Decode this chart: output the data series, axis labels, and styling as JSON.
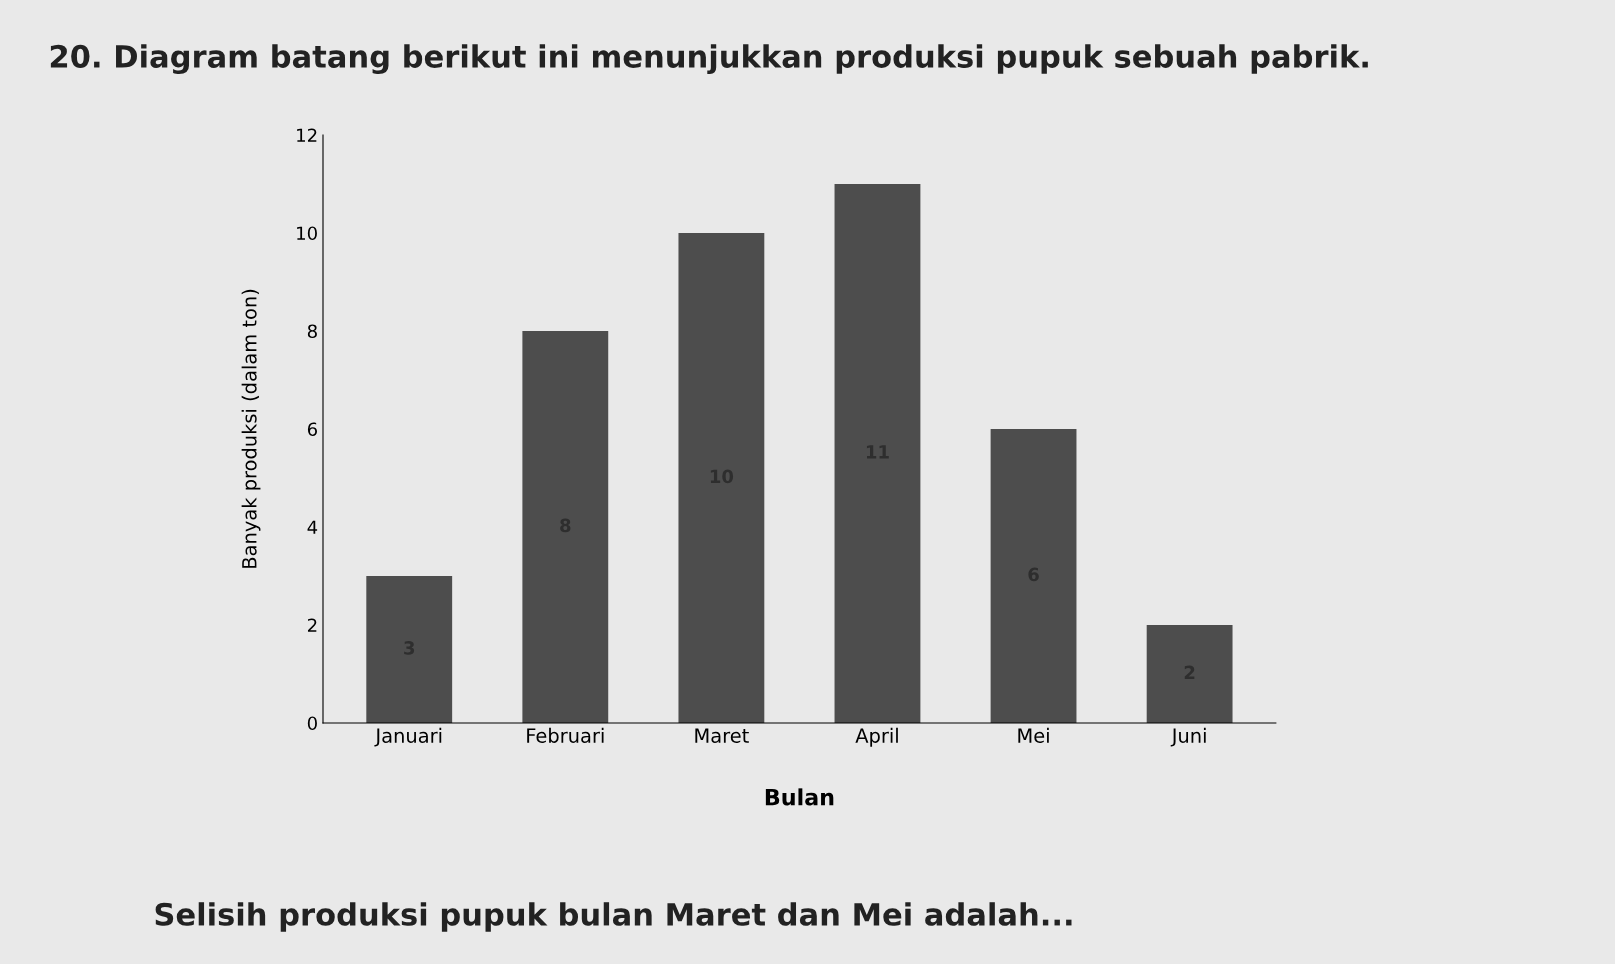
{
  "chart_data": {
    "type": "bar",
    "title": "20. Diagram batang berikut ini menunjukkan produksi pupuk sebuah pabrik.",
    "xlabel": "Bulan",
    "ylabel": "Banyak produksi (dalam ton)",
    "categories": [
      "Januari",
      "Februari",
      "Maret",
      "April",
      "Mei",
      "Juni"
    ],
    "values": [
      3,
      8,
      10,
      11,
      6,
      2
    ],
    "color": "#4d4d4d",
    "ylim": [
      0,
      12
    ],
    "yticks": [
      0,
      2,
      4,
      6,
      8,
      10,
      12
    ],
    "data_labels": true,
    "grid": false,
    "legend": false,
    "annotations": [
      "Selisih produksi pupuk bulan Maret dan Mei adalah..."
    ]
  }
}
